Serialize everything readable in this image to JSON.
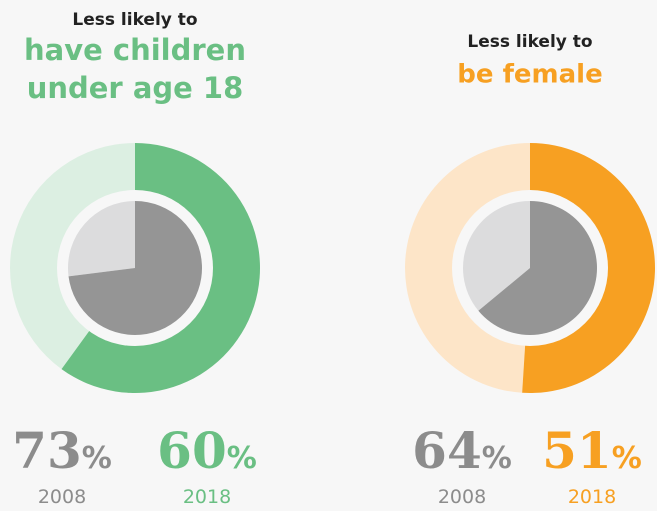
{
  "chart_data": [
    {
      "type": "donut",
      "title": "Less likely to",
      "subtitle": [
        "have children",
        "under age 18"
      ],
      "series": [
        {
          "name": "2008",
          "color": "#959595",
          "rest_color": "#dcdcdd",
          "label_color": "#8c8c8c",
          "values": [
            73
          ],
          "value_labels": [
            "73%"
          ]
        },
        {
          "name": "2018",
          "color": "#6abf83",
          "rest_color": "#dcefe2",
          "label_color": "#6abf83",
          "values": [
            60
          ],
          "value_labels": [
            "60%"
          ]
        }
      ]
    },
    {
      "type": "donut",
      "title": "Less likely to",
      "subtitle": [
        "be female"
      ],
      "series": [
        {
          "name": "2008",
          "color": "#959595",
          "rest_color": "#dcdcdd",
          "label_color": "#8c8c8c",
          "values": [
            64
          ],
          "value_labels": [
            "64%"
          ]
        },
        {
          "name": "2018",
          "color": "#f7a022",
          "rest_color": "#fde5c8",
          "label_color": "#f7a022",
          "values": [
            51
          ],
          "value_labels": [
            "51%"
          ]
        }
      ]
    }
  ]
}
